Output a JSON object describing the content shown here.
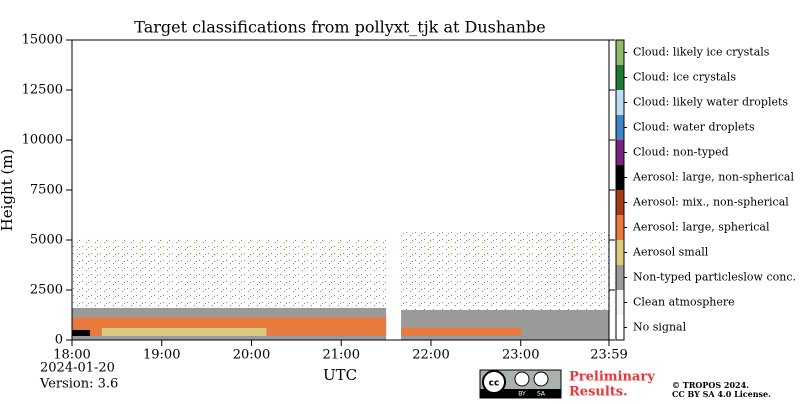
{
  "chart_data": {
    "type": "classification",
    "title": "Target classifications from pollyxt_tjk at Dushanbe",
    "y_label": "Height (m)",
    "x_label": "UTC",
    "date": "2024-01-20",
    "version": "Version: 3.6",
    "xlim": [
      0,
      359
    ],
    "xticks": [
      {
        "value": 0,
        "label": "18:00"
      },
      {
        "value": 60,
        "label": "19:00"
      },
      {
        "value": 120,
        "label": "20:00"
      },
      {
        "value": 180,
        "label": "21:00"
      },
      {
        "value": 240,
        "label": "22:00"
      },
      {
        "value": 300,
        "label": "23:00"
      },
      {
        "value": 359,
        "label": "23:59"
      }
    ],
    "ylim": [
      0,
      15000
    ],
    "yticks": [
      0,
      2500,
      5000,
      7500,
      10000,
      12500,
      15000
    ],
    "classes": [
      {
        "name": "No signal",
        "color": "#ffffff"
      },
      {
        "name": "Clean atmosphere",
        "color": "#f4f4f4"
      },
      {
        "name": "Non-typed particleslow conc.",
        "color": "#9a9a9a"
      },
      {
        "name": "Aerosol small",
        "color": "#dcc97c"
      },
      {
        "name": "Aerosol: large, spherical",
        "color": "#ea7a3c"
      },
      {
        "name": "Aerosol: mix., non-spherical",
        "color": "#a63c16"
      },
      {
        "name": "Aerosol: large, non-spherical",
        "color": "#000000"
      },
      {
        "name": "Cloud: non-typed",
        "color": "#7b2380"
      },
      {
        "name": "Cloud: water droplets",
        "color": "#3f86c6"
      },
      {
        "name": "Cloud: likely water droplets",
        "color": "#bcdcf4"
      },
      {
        "name": "Cloud: ice crystals",
        "color": "#1f7a36"
      },
      {
        "name": "Cloud: likely ice crystals",
        "color": "#8cbc6c"
      }
    ],
    "regions": [
      {
        "class": 2,
        "time": [
          0,
          210
        ],
        "height": [
          1500,
          5000
        ],
        "sparse": true
      },
      {
        "class": 2,
        "time": [
          220,
          359
        ],
        "height": [
          1500,
          5500
        ],
        "sparse": true
      },
      {
        "class": 2,
        "time": [
          0,
          210
        ],
        "height": [
          0,
          1600
        ]
      },
      {
        "class": 4,
        "time": [
          0,
          210
        ],
        "height": [
          200,
          1100
        ]
      },
      {
        "class": 3,
        "time": [
          20,
          130
        ],
        "height": [
          200,
          600
        ]
      },
      {
        "class": 6,
        "time": [
          0,
          12
        ],
        "height": [
          200,
          500
        ]
      },
      {
        "class": 2,
        "time": [
          220,
          359
        ],
        "height": [
          0,
          1500
        ]
      },
      {
        "class": 4,
        "time": [
          220,
          300
        ],
        "height": [
          200,
          600
        ]
      }
    ],
    "badge": [
      "Preliminary",
      "Results."
    ],
    "copyright": [
      "© TROPOS 2024.",
      "CC BY SA 4.0 License."
    ],
    "logo": [
      "BY",
      "SA"
    ]
  }
}
